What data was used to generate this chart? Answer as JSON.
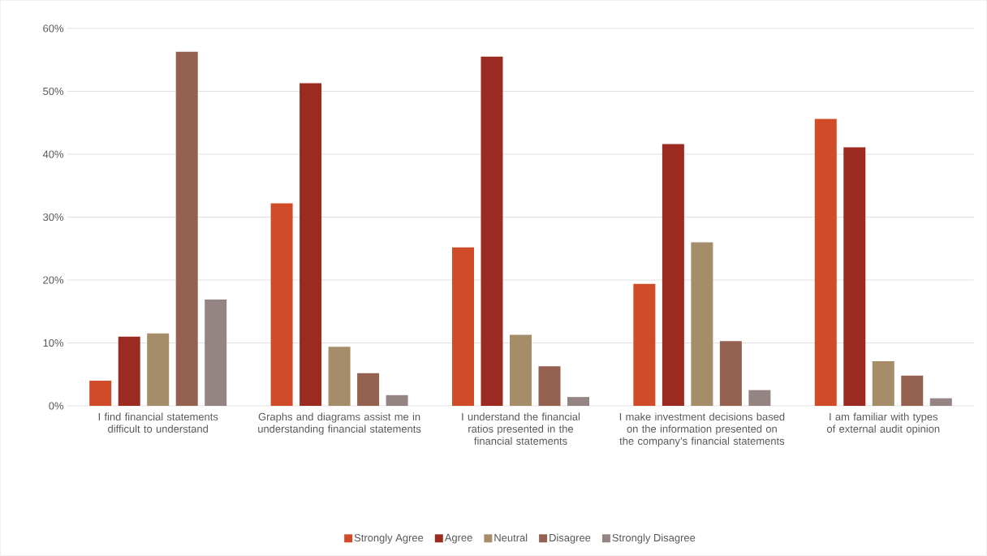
{
  "chart_data": {
    "type": "bar",
    "categories": [
      "I find financial statements difficult to understand",
      "Graphs and diagrams assist me in understanding financial statements",
      "I understand the financial ratios presented in the financial statements",
      "I make investment decisions based on the information presented on the company’s financial statements",
      "I am familiar with types of external audit opinion"
    ],
    "series": [
      {
        "name": "Strongly  Agree",
        "color": "#d04b27",
        "values": [
          4.0,
          32.2,
          25.2,
          19.4,
          45.6
        ]
      },
      {
        "name": "Agree",
        "color": "#9b2b20",
        "values": [
          11.0,
          51.3,
          55.5,
          41.6,
          41.1
        ]
      },
      {
        "name": "Neutral",
        "color": "#a48d68",
        "values": [
          11.5,
          9.4,
          11.3,
          26.0,
          7.1
        ]
      },
      {
        "name": "Disagree",
        "color": "#94604f",
        "values": [
          56.3,
          5.2,
          6.3,
          10.3,
          4.8
        ]
      },
      {
        "name": "Strongly Disagree",
        "color": "#948483",
        "values": [
          16.9,
          1.7,
          1.4,
          2.5,
          1.2
        ]
      }
    ],
    "ylim": [
      0,
      60
    ],
    "yticks": [
      {
        "value": 0,
        "label": "0%"
      },
      {
        "value": 10,
        "label": "10%"
      },
      {
        "value": 20,
        "label": "20%"
      },
      {
        "value": 30,
        "label": "30%"
      },
      {
        "value": 40,
        "label": "40%"
      },
      {
        "value": 50,
        "label": "50%"
      },
      {
        "value": 60,
        "label": "60%"
      }
    ],
    "grid": "y",
    "legend": "bottom"
  }
}
